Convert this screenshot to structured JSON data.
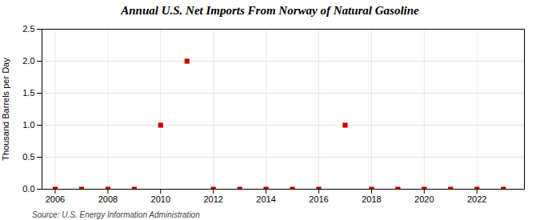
{
  "chart_data": {
    "type": "scatter",
    "title": "Annual U.S. Net Imports From Norway of Natural Gasoline",
    "ylabel": "Thousand Barrels per Day",
    "source": "Source: U.S. Energy Information Administration",
    "x": [
      2006,
      2007,
      2008,
      2009,
      2010,
      2011,
      2012,
      2013,
      2014,
      2015,
      2016,
      2017,
      2018,
      2019,
      2020,
      2021,
      2022,
      2023
    ],
    "values": [
      0.0,
      0.0,
      0.0,
      0.0,
      1.0,
      2.0,
      0.0,
      0.0,
      0.0,
      0.0,
      0.0,
      1.0,
      0.0,
      0.0,
      0.0,
      0.0,
      0.0,
      0.0
    ],
    "color": "#cc0000",
    "marker": "square",
    "xlim": [
      2005.5,
      2023.8
    ],
    "xticks": [
      2006,
      2008,
      2010,
      2012,
      2014,
      2016,
      2018,
      2020,
      2022
    ],
    "ylim": [
      0.0,
      2.5
    ],
    "yticks": [
      {
        "value": 0,
        "label": "0.0"
      },
      0.5,
      {
        "value": 1,
        "label": "1.0"
      },
      1.5,
      {
        "value": 2,
        "label": "2.0"
      },
      2.5
    ],
    "grid": true
  }
}
